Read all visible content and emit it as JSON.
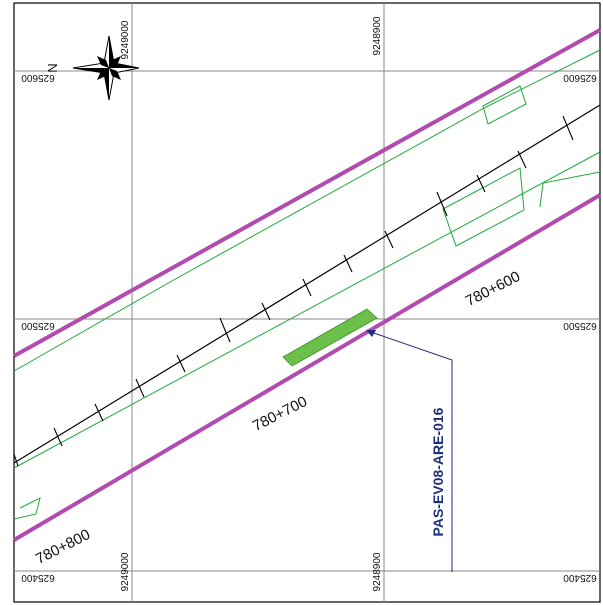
{
  "map": {
    "colors": {
      "frame": "#000000",
      "grid": "#8a8a8a",
      "right_of_way": "#b24bb0",
      "boundary": "#1faa3a",
      "axis": "#000000",
      "area_fill": "#6cc04a",
      "callout": "#1f2f7a"
    },
    "north_label": "N",
    "grid_labels": {
      "top_left_x": "9249000",
      "top_right_x": "9248900",
      "bottom_left_x": "9249000",
      "bottom_right_x": "9248900",
      "left_top_y": "625600",
      "right_top_y": "625600",
      "left_mid_y": "625500",
      "right_mid_y": "625500",
      "left_bottom_y": "625400",
      "right_bottom_y": "625400"
    },
    "stations": {
      "st_600": "780+600",
      "st_700": "780+700",
      "st_800": "780+800"
    },
    "area_code": "PAS-EV08-ARE-016",
    "icons": {
      "north_arrow": "compass-rose-icon"
    }
  }
}
